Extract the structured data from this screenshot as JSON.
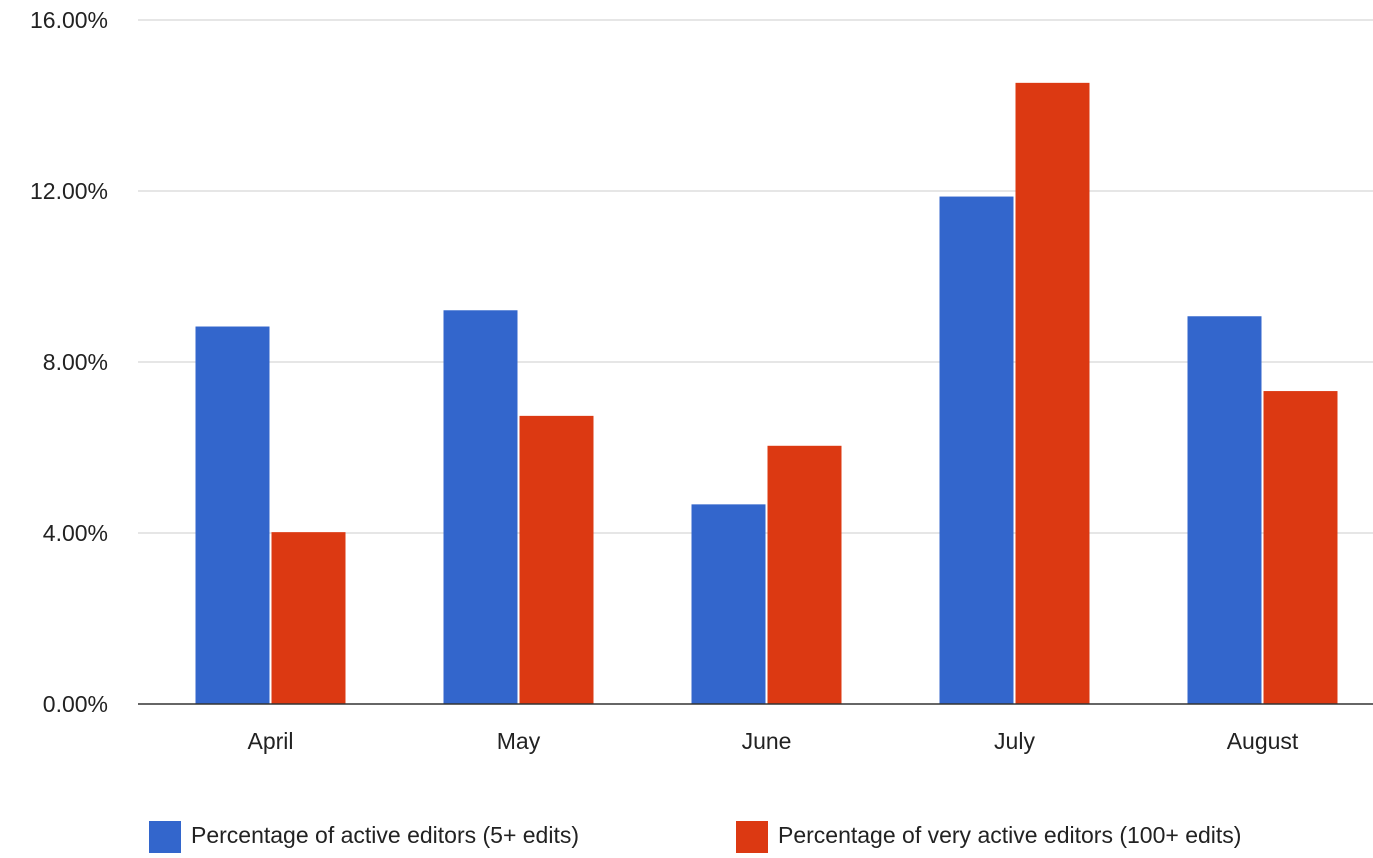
{
  "chart_data": {
    "type": "bar",
    "title": "",
    "xlabel": "",
    "ylabel": "",
    "categories": [
      "April",
      "May",
      "June",
      "July",
      "August"
    ],
    "series": [
      {
        "name": "Percentage of active editors (5+ edits)",
        "color": "#3366cc",
        "values": [
          8.83,
          9.21,
          4.67,
          11.87,
          9.07
        ]
      },
      {
        "name": "Percentage of very active editors (100+ edits)",
        "color": "#dc3912",
        "values": [
          4.02,
          6.74,
          6.04,
          14.53,
          7.32
        ]
      }
    ],
    "ylim": [
      0,
      16
    ],
    "yticks": [
      {
        "value": 0,
        "label": "0.00%"
      },
      {
        "value": 4,
        "label": "4.00%"
      },
      {
        "value": 8,
        "label": "8.00%"
      },
      {
        "value": 12,
        "label": "12.00%"
      },
      {
        "value": 16,
        "label": "16.00%"
      }
    ],
    "grid": true,
    "legend_position": "bottom"
  }
}
